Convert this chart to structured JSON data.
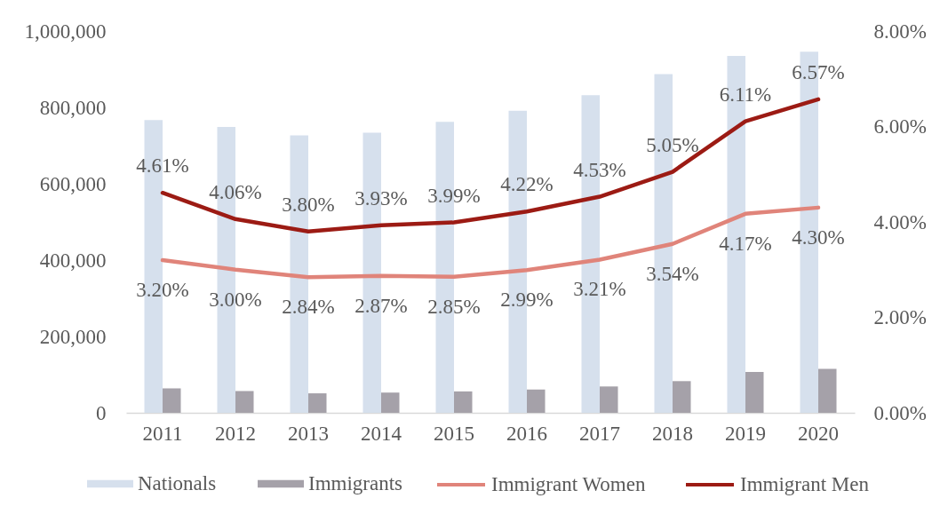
{
  "chart_data": {
    "type": "bar",
    "categories": [
      "2011",
      "2012",
      "2013",
      "2014",
      "2015",
      "2016",
      "2017",
      "2018",
      "2019",
      "2020"
    ],
    "series": [
      {
        "name": "Nationals",
        "color": "#d6e0ed",
        "values": [
          767000,
          749000,
          727000,
          734000,
          762000,
          791000,
          832000,
          887000,
          935000,
          946000
        ]
      },
      {
        "name": "Immigrants",
        "color": "#a5a1a9",
        "values": [
          64000,
          57000,
          51000,
          53000,
          56000,
          61000,
          69000,
          83000,
          107000,
          115000
        ]
      },
      {
        "name": "Immigrant Women",
        "type": "line",
        "axis": "y2",
        "color": "#e0847a",
        "values": [
          3.2,
          3.0,
          2.84,
          2.87,
          2.85,
          2.99,
          3.21,
          3.54,
          4.17,
          4.3
        ],
        "value_labels": [
          "3.20%",
          "3.00%",
          "2.84%",
          "2.87%",
          "2.85%",
          "2.99%",
          "3.21%",
          "3.54%",
          "4.17%",
          "4.30%"
        ]
      },
      {
        "name": "Immigrant Men",
        "type": "line",
        "axis": "y2",
        "color": "#9c1b14",
        "values": [
          4.61,
          4.06,
          3.8,
          3.93,
          3.99,
          4.22,
          4.53,
          5.05,
          6.11,
          6.57
        ],
        "value_labels": [
          "4.61%",
          "4.06%",
          "3.80%",
          "3.93%",
          "3.99%",
          "4.22%",
          "4.53%",
          "5.05%",
          "6.11%",
          "6.57%"
        ]
      }
    ],
    "ylim": [
      0,
      1000000
    ],
    "yticks": [
      0,
      {
        "value": 200000,
        "label": "200,000"
      },
      {
        "value": 400000,
        "label": "400,000"
      },
      {
        "value": 600000,
        "label": "600,000"
      },
      {
        "value": 800000,
        "label": "800,000"
      },
      {
        "value": 1000000,
        "label": "1,000,000"
      }
    ],
    "y2lim": [
      0,
      8
    ],
    "y2ticks": [
      {
        "value": 0,
        "label": "0.00%"
      },
      {
        "value": 2,
        "label": "2.00%"
      },
      {
        "value": 4,
        "label": "4.00%"
      },
      {
        "value": 6,
        "label": "6.00%"
      },
      {
        "value": 8,
        "label": "8.00%"
      }
    ],
    "legend": "bottom"
  }
}
